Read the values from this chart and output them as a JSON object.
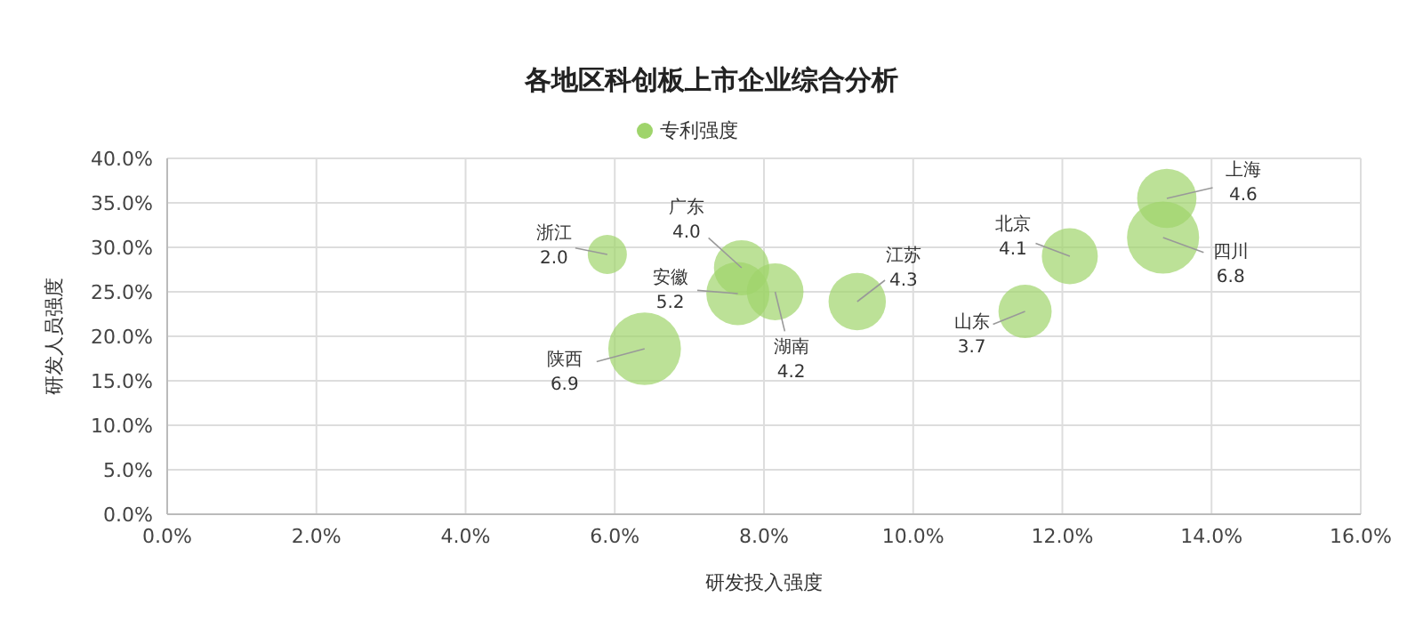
{
  "chart_data": {
    "type": "bubble",
    "title": "各地区科创板上市企业综合分析",
    "xlabel": "研发投入强度",
    "ylabel": "研发人员强度",
    "x": [
      5.9,
      7.7,
      7.65,
      8.15,
      9.25,
      6.4,
      11.5,
      12.1,
      13.4,
      13.35
    ],
    "series": [
      {
        "name": "专利强度",
        "color": "#9fd46b",
        "values": [
          29.2,
          27.7,
          24.8,
          25.0,
          23.9,
          18.6,
          22.8,
          29.0,
          35.5,
          31.1
        ],
        "sizes": [
          2.0,
          4.0,
          5.2,
          4.2,
          4.3,
          6.9,
          3.7,
          4.1,
          4.6,
          6.8
        ],
        "value_labels": [
          "2.0",
          "4.0",
          "5.2",
          "4.2",
          "4.3",
          "6.9",
          "3.7",
          "4.1",
          "4.6",
          "6.8"
        ]
      }
    ],
    "annotations": [
      {
        "text": "浙江",
        "x": 5.9,
        "y": 29.2
      },
      {
        "text": "广东",
        "x": 7.7,
        "y": 27.7
      },
      {
        "text": "安徽",
        "x": 7.65,
        "y": 24.8
      },
      {
        "text": "湖南",
        "x": 8.15,
        "y": 25.0
      },
      {
        "text": "江苏",
        "x": 9.25,
        "y": 23.9
      },
      {
        "text": "陕西",
        "x": 6.4,
        "y": 18.6
      },
      {
        "text": "山东",
        "x": 11.5,
        "y": 22.8
      },
      {
        "text": "北京",
        "x": 12.1,
        "y": 29.0
      },
      {
        "text": "上海",
        "x": 13.4,
        "y": 35.5
      },
      {
        "text": "四川",
        "x": 13.35,
        "y": 31.1
      }
    ],
    "xlim": [
      0,
      16
    ],
    "xticks": [
      {
        "value": 0,
        "label": "0.0%"
      },
      {
        "value": 2,
        "label": "2.0%"
      },
      {
        "value": 4,
        "label": "4.0%"
      },
      {
        "value": 6,
        "label": "6.0%"
      },
      {
        "value": 8,
        "label": "8.0%"
      },
      {
        "value": 10,
        "label": "10.0%"
      },
      {
        "value": 12,
        "label": "12.0%"
      },
      {
        "value": 14,
        "label": "14.0%"
      },
      {
        "value": 16,
        "label": "16.0%"
      }
    ],
    "ylim": [
      0,
      40
    ],
    "yticks": [
      {
        "value": 0,
        "label": "0.0%"
      },
      {
        "value": 5,
        "label": "5.0%"
      },
      {
        "value": 10,
        "label": "10.0%"
      },
      {
        "value": 15,
        "label": "15.0%"
      },
      {
        "value": 20,
        "label": "20.0%"
      },
      {
        "value": 25,
        "label": "25.0%"
      },
      {
        "value": 30,
        "label": "30.0%"
      },
      {
        "value": 35,
        "label": "35.0%"
      },
      {
        "value": 40,
        "label": "40.0%"
      }
    ],
    "grid": true,
    "legend": "top"
  }
}
